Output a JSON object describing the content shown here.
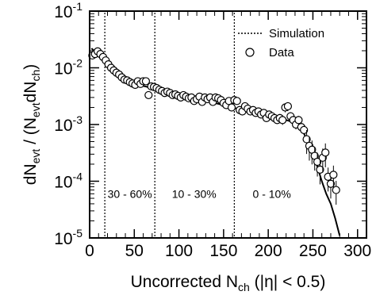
{
  "chart_data": {
    "type": "scatter",
    "title": "",
    "xlabel": {
      "main": "Uncorrected N",
      "sub": "ch",
      "suffix": " (|η| < 0.5)"
    },
    "ylabel": {
      "a": "dN",
      "a_sub": "evt",
      "b": " / (N",
      "b_sub": "evt",
      "c": "dN",
      "c_sub": "ch",
      "d": ")"
    },
    "xlim": [
      0,
      310
    ],
    "ylim": [
      1e-05,
      0.1
    ],
    "yscale": "log",
    "x_ticks": [
      0,
      50,
      100,
      150,
      200,
      250,
      300
    ],
    "x_tick_labels": [
      "0",
      "50",
      "100",
      "150",
      "200",
      "250",
      "300"
    ],
    "y_ticks": [
      {
        "value": 1e-05,
        "base": "10",
        "exp": "-5"
      },
      {
        "value": 0.0001,
        "base": "10",
        "exp": "-4"
      },
      {
        "value": 0.001,
        "base": "10",
        "exp": "-3"
      },
      {
        "value": 0.01,
        "base": "10",
        "exp": "-2"
      },
      {
        "value": 0.1,
        "base": "10",
        "exp": "-1"
      }
    ],
    "grid": false,
    "legend": {
      "position": "top-right",
      "entries": [
        {
          "label": "Simulation",
          "marker": "dotted-line"
        },
        {
          "label": "Data",
          "marker": "open-circle"
        }
      ]
    },
    "centrality_boundaries": [
      17,
      73,
      162
    ],
    "annotations": [
      {
        "text": "30 - 60%",
        "x": 45,
        "y": 6e-05
      },
      {
        "text": "10 - 30%",
        "x": 117,
        "y": 6e-05
      },
      {
        "text": "0 - 10%",
        "x": 204,
        "y": 6e-05
      }
    ],
    "series": [
      {
        "name": "Data",
        "marker": "open-circle",
        "points": [
          {
            "x": 3,
            "y": 0.0165
          },
          {
            "x": 6,
            "y": 0.0175
          },
          {
            "x": 9,
            "y": 0.0195
          },
          {
            "x": 12,
            "y": 0.0175
          },
          {
            "x": 15,
            "y": 0.0155
          },
          {
            "x": 18,
            "y": 0.0135
          },
          {
            "x": 21,
            "y": 0.0115
          },
          {
            "x": 24,
            "y": 0.01
          },
          {
            "x": 27,
            "y": 0.009
          },
          {
            "x": 30,
            "y": 0.0082
          },
          {
            "x": 33,
            "y": 0.0076
          },
          {
            "x": 36,
            "y": 0.0068
          },
          {
            "x": 39,
            "y": 0.0062
          },
          {
            "x": 42,
            "y": 0.006
          },
          {
            "x": 45,
            "y": 0.0056
          },
          {
            "x": 48,
            "y": 0.0053
          },
          {
            "x": 51,
            "y": 0.005
          },
          {
            "x": 54,
            "y": 0.0058
          },
          {
            "x": 57,
            "y": 0.0052
          },
          {
            "x": 60,
            "y": 0.0058
          },
          {
            "x": 63,
            "y": 0.0058
          },
          {
            "x": 66,
            "y": 0.0033
          },
          {
            "x": 69,
            "y": 0.0047
          },
          {
            "x": 72,
            "y": 0.0046
          },
          {
            "x": 75,
            "y": 0.0044
          },
          {
            "x": 78,
            "y": 0.0041
          },
          {
            "x": 81,
            "y": 0.0039
          },
          {
            "x": 84,
            "y": 0.0036
          },
          {
            "x": 87,
            "y": 0.0038
          },
          {
            "x": 90,
            "y": 0.0036
          },
          {
            "x": 93,
            "y": 0.0033
          },
          {
            "x": 96,
            "y": 0.0034
          },
          {
            "x": 99,
            "y": 0.0032
          },
          {
            "x": 102,
            "y": 0.003
          },
          {
            "x": 105,
            "y": 0.0033
          },
          {
            "x": 108,
            "y": 0.0031
          },
          {
            "x": 111,
            "y": 0.0029
          },
          {
            "x": 114,
            "y": 0.003
          },
          {
            "x": 117,
            "y": 0.0026
          },
          {
            "x": 120,
            "y": 0.0028
          },
          {
            "x": 123,
            "y": 0.0031
          },
          {
            "x": 126,
            "y": 0.0025
          },
          {
            "x": 129,
            "y": 0.003
          },
          {
            "x": 132,
            "y": 0.0028
          },
          {
            "x": 135,
            "y": 0.003
          },
          {
            "x": 138,
            "y": 0.0025
          },
          {
            "x": 141,
            "y": 0.003
          },
          {
            "x": 144,
            "y": 0.0029
          },
          {
            "x": 147,
            "y": 0.0027
          },
          {
            "x": 150,
            "y": 0.0024
          },
          {
            "x": 153,
            "y": 0.0022
          },
          {
            "x": 156,
            "y": 0.0026
          },
          {
            "x": 159,
            "y": 0.002
          },
          {
            "x": 162,
            "y": 0.0027
          },
          {
            "x": 165,
            "y": 0.0026
          },
          {
            "x": 168,
            "y": 0.0018
          },
          {
            "x": 171,
            "y": 0.0017
          },
          {
            "x": 174,
            "y": 0.0021
          },
          {
            "x": 177,
            "y": 0.0019
          },
          {
            "x": 180,
            "y": 0.0017
          },
          {
            "x": 183,
            "y": 0.0018
          },
          {
            "x": 186,
            "y": 0.0016
          },
          {
            "x": 189,
            "y": 0.0017
          },
          {
            "x": 192,
            "y": 0.0015
          },
          {
            "x": 195,
            "y": 0.0016
          },
          {
            "x": 198,
            "y": 0.0013
          },
          {
            "x": 201,
            "y": 0.0015
          },
          {
            "x": 204,
            "y": 0.0014
          },
          {
            "x": 207,
            "y": 0.0013
          },
          {
            "x": 210,
            "y": 0.0012
          },
          {
            "x": 213,
            "y": 0.0013
          },
          {
            "x": 216,
            "y": 0.0012
          },
          {
            "x": 219,
            "y": 0.002
          },
          {
            "x": 222,
            "y": 0.0021
          },
          {
            "x": 225,
            "y": 0.0014
          },
          {
            "x": 228,
            "y": 0.0012
          },
          {
            "x": 231,
            "y": 0.001
          },
          {
            "x": 234,
            "y": 0.0012
          },
          {
            "x": 237,
            "y": 0.0009
          },
          {
            "x": 240,
            "y": 0.0008
          },
          {
            "x": 243,
            "y": 0.00055
          },
          {
            "x": 246,
            "y": 0.00042
          },
          {
            "x": 249,
            "y": 0.00036
          },
          {
            "x": 252,
            "y": 0.00028
          },
          {
            "x": 255,
            "y": 0.00022
          },
          {
            "x": 258,
            "y": 0.00016
          },
          {
            "x": 261,
            "y": 0.00026
          },
          {
            "x": 264,
            "y": 0.00032
          },
          {
            "x": 267,
            "y": 0.00012
          },
          {
            "x": 270,
            "y": 9e-05
          },
          {
            "x": 273,
            "y": 0.00013
          },
          {
            "x": 276,
            "y": 7e-05
          }
        ]
      },
      {
        "name": "Simulation",
        "marker": "line",
        "points": [
          {
            "x": 2,
            "y": 0.022
          },
          {
            "x": 10,
            "y": 0.017
          },
          {
            "x": 20,
            "y": 0.012
          },
          {
            "x": 30,
            "y": 0.0085
          },
          {
            "x": 40,
            "y": 0.0064
          },
          {
            "x": 50,
            "y": 0.0054
          },
          {
            "x": 60,
            "y": 0.0048
          },
          {
            "x": 70,
            "y": 0.0044
          },
          {
            "x": 80,
            "y": 0.004
          },
          {
            "x": 90,
            "y": 0.0036
          },
          {
            "x": 100,
            "y": 0.0033
          },
          {
            "x": 110,
            "y": 0.003
          },
          {
            "x": 120,
            "y": 0.0028
          },
          {
            "x": 130,
            "y": 0.0026
          },
          {
            "x": 140,
            "y": 0.0024
          },
          {
            "x": 150,
            "y": 0.0022
          },
          {
            "x": 160,
            "y": 0.002
          },
          {
            "x": 170,
            "y": 0.0018
          },
          {
            "x": 180,
            "y": 0.0016
          },
          {
            "x": 190,
            "y": 0.0015
          },
          {
            "x": 200,
            "y": 0.0014
          },
          {
            "x": 210,
            "y": 0.0013
          },
          {
            "x": 220,
            "y": 0.0012
          },
          {
            "x": 228,
            "y": 0.0011
          },
          {
            "x": 235,
            "y": 0.0009
          },
          {
            "x": 240,
            "y": 0.0007
          },
          {
            "x": 245,
            "y": 0.00045
          },
          {
            "x": 250,
            "y": 0.0003
          },
          {
            "x": 255,
            "y": 0.00018
          },
          {
            "x": 260,
            "y": 0.0001
          },
          {
            "x": 265,
            "y": 6e-05
          },
          {
            "x": 270,
            "y": 4e-05
          },
          {
            "x": 275,
            "y": 2.2e-05
          },
          {
            "x": 280,
            "y": 1.1e-05
          }
        ]
      }
    ]
  }
}
